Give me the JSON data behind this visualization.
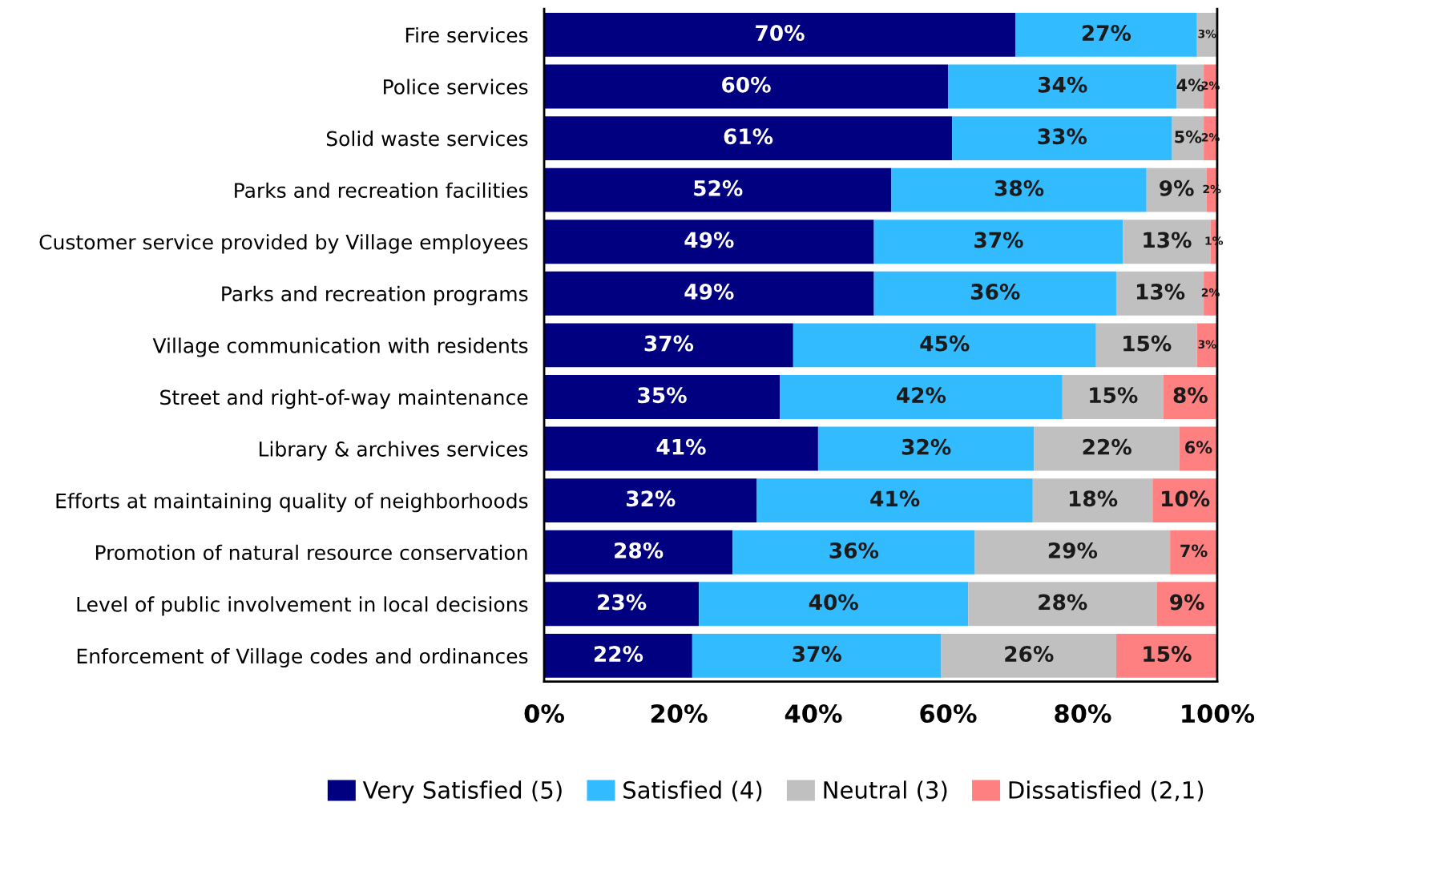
{
  "chart_data": {
    "type": "bar",
    "orientation": "horizontal",
    "stacked": true,
    "categories": [
      "Fire services",
      "Police services",
      "Solid waste services",
      "Parks and recreation facilities",
      "Customer service provided by Village employees",
      "Parks and recreation programs",
      "Village communication with residents",
      "Street and right-of-way maintenance",
      "Library & archives services",
      "Efforts at maintaining quality of neighborhoods",
      "Promotion of natural resource conservation",
      "Level of public involvement in local decisions",
      "Enforcement of Village codes and ordinances"
    ],
    "series": [
      {
        "name": "Very Satisfied (5)",
        "color": "#000080",
        "values": [
          70,
          60,
          60.6,
          51.6,
          49,
          49,
          37,
          35,
          40.7,
          31.6,
          28,
          23,
          22
        ],
        "value_labels": [
          "70%",
          "60%",
          "61%",
          "52%",
          "49%",
          "49%",
          "37%",
          "35%",
          "41%",
          "32%",
          "28%",
          "23%",
          "22%"
        ]
      },
      {
        "name": "Satisfied (4)",
        "color": "#33bbff",
        "values": [
          27,
          34,
          32.7,
          37.9,
          37,
          36,
          45,
          42,
          32.1,
          41.0,
          36,
          40,
          37
        ],
        "value_labels": [
          "27%",
          "34%",
          "33%",
          "38%",
          "37%",
          "36%",
          "45%",
          "42%",
          "32%",
          "41%",
          "36%",
          "40%",
          "37%"
        ]
      },
      {
        "name": "Neutral (3)",
        "color": "#c0c0c0",
        "values": [
          3,
          4,
          4.7,
          8.9,
          13,
          13,
          15,
          15,
          21.6,
          17.8,
          29,
          28,
          26
        ],
        "value_labels": [
          "3%",
          "4%",
          "5%",
          "9%",
          "13%",
          "13%",
          "15%",
          "15%",
          "22%",
          "18%",
          "29%",
          "28%",
          "26%"
        ]
      },
      {
        "name": "Dissatisfied (2,1)",
        "color": "#ff8080",
        "values": [
          0,
          2,
          2.0,
          1.6,
          1,
          2,
          3,
          8,
          5.6,
          9.6,
          7,
          9,
          15
        ],
        "value_labels": [
          null,
          "2%",
          "2%",
          "2%",
          "1%",
          "2%",
          "3%",
          "8%",
          "6%",
          "10%",
          "7%",
          "9%",
          "15%"
        ]
      }
    ],
    "xlim": [
      0,
      100
    ],
    "xticks": [
      {
        "value": 0,
        "label": "0%"
      },
      {
        "value": 20,
        "label": "20%"
      },
      {
        "value": 40,
        "label": "40%"
      },
      {
        "value": 60,
        "label": "60%"
      },
      {
        "value": 80,
        "label": "80%"
      },
      {
        "value": 100,
        "label": "100%"
      }
    ],
    "grid": false,
    "legend": "bottom"
  }
}
